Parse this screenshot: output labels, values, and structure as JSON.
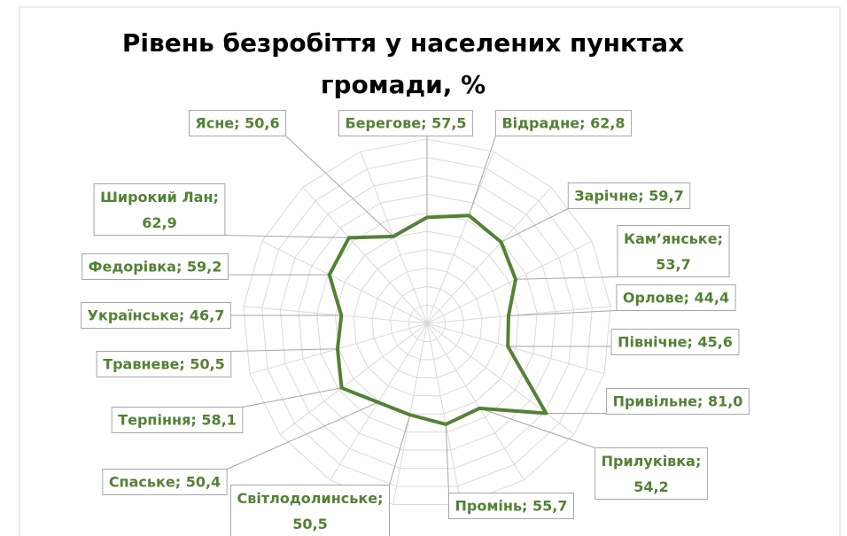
{
  "chart_data": {
    "type": "radar",
    "title": "Рівень безробіття у населених пунктах громади, %",
    "values": [
      57.5,
      62.8,
      59.7,
      53.7,
      44.4,
      45.6,
      81.0,
      54.2,
      55.7,
      50.5,
      50.4,
      58.1,
      50.5,
      46.7,
      59.2,
      62.9,
      50.6
    ],
    "value_labels": [
      "Берегове; 57,5",
      "Відрадне; 62,8",
      "Зарічне; 59,7",
      "Кам’янське; 53,7",
      "Орлове; 44,4",
      "Північне; 45,6",
      "Привільне; 81,0",
      "Прилуківка; 54,2",
      "Промінь; 55,7",
      "Світлодолинське; 50,5",
      "Спаське; 50,4",
      "Терпіння; 58,1",
      "Травневе; 50,5",
      "Українське; 46,7",
      "Федорівка; 59,2",
      "Широкий Лан; 62,9",
      "Ясне; 50,6"
    ],
    "color": "#548235",
    "ylim": [
      0,
      100
    ],
    "yticks": [
      10,
      20,
      30,
      40,
      50,
      60,
      70,
      80,
      90,
      100
    ],
    "grid": true
  }
}
